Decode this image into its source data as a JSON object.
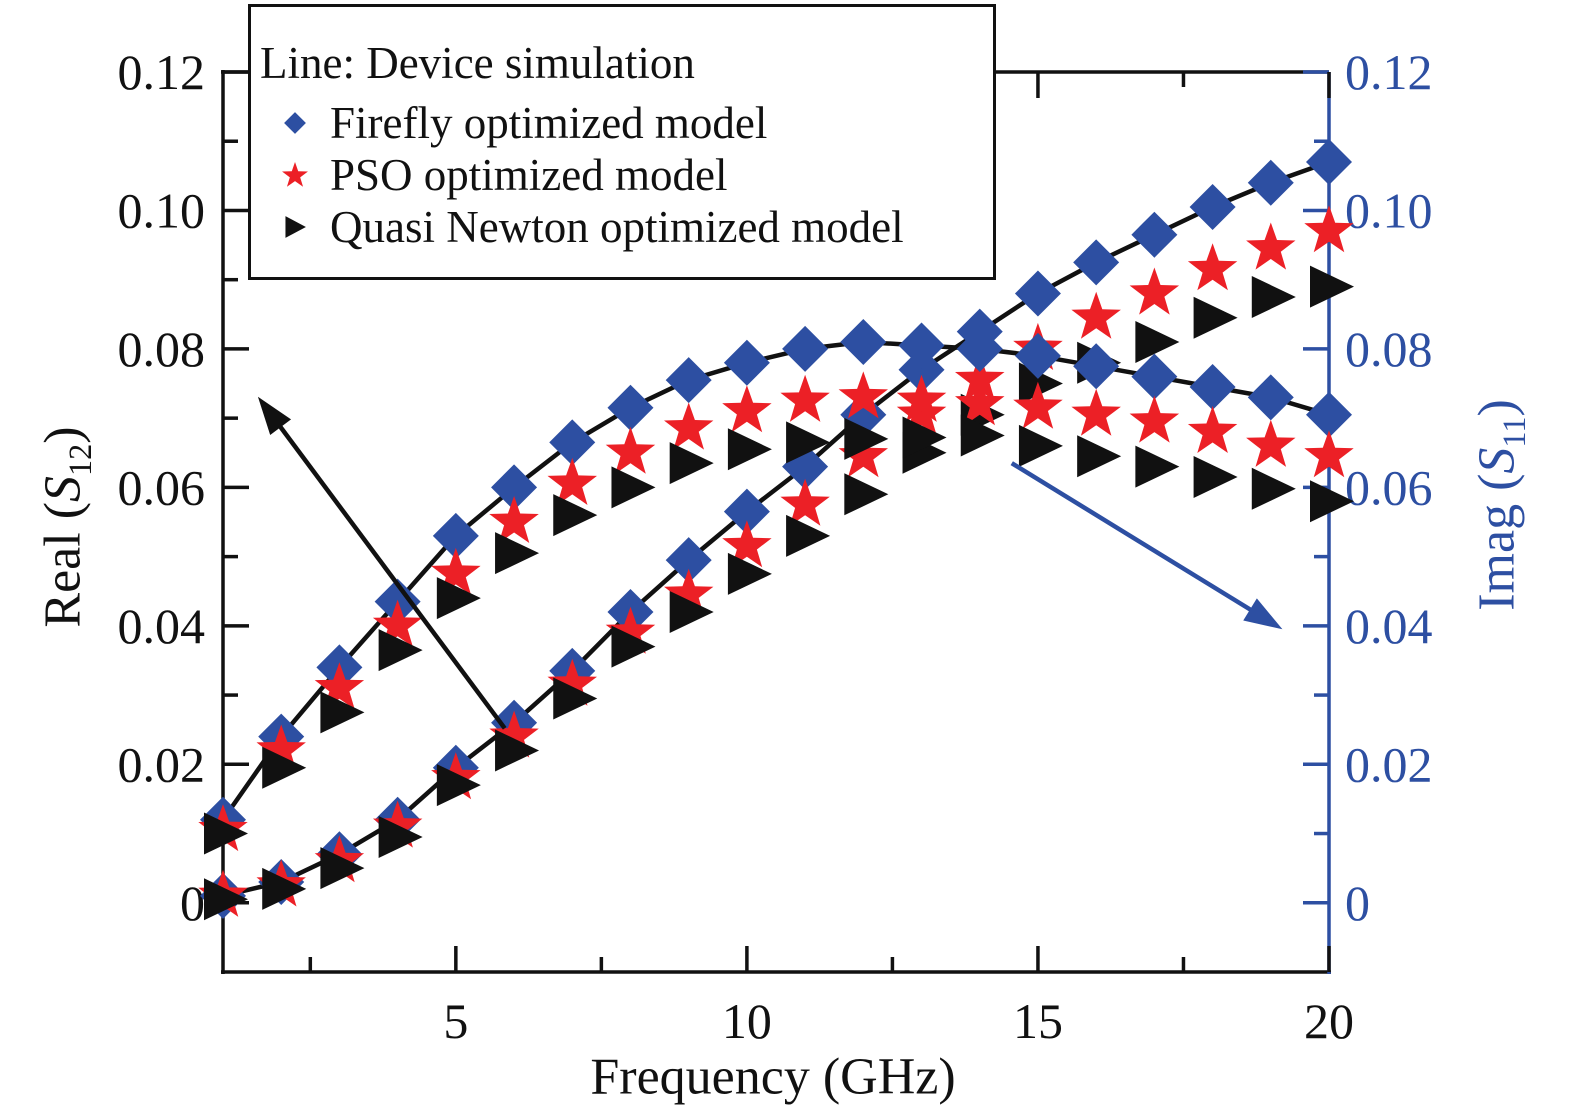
{
  "legend": {
    "line_label": "Line: Device simulation",
    "items": [
      {
        "label": "Firefly optimized model",
        "marker": "diamond",
        "color": "#2d4fa2"
      },
      {
        "label": "PSO optimized model",
        "marker": "star",
        "color": "#ec2026"
      },
      {
        "label": "Quasi Newton optimized model",
        "marker": "triangle-right",
        "color": "#111111"
      }
    ]
  },
  "axes": {
    "x_title": "Frequency (GHz)",
    "left_title": {
      "pre": "Real (",
      "var": "S",
      "sub": "12",
      "post": ")"
    },
    "right_title": {
      "pre": "Imag (",
      "var": "S",
      "sub": "11",
      "post": ")"
    }
  },
  "colors": {
    "marker_blue": "#2d4fa2",
    "marker_red": "#ec2026",
    "marker_black": "#111111",
    "line_black": "#111111",
    "right_axis_blue": "#2d4fa2"
  },
  "chart_data": {
    "type": "line",
    "x": [
      1,
      2,
      3,
      4,
      5,
      6,
      7,
      8,
      9,
      10,
      11,
      12,
      13,
      14,
      15,
      16,
      17,
      18,
      19,
      20
    ],
    "x_range": [
      1,
      20
    ],
    "x_major_ticks": [
      5,
      10,
      15,
      20
    ],
    "x_major_tick_labels": [
      "5",
      "10",
      "15",
      "20"
    ],
    "x_minor_ticks": [
      2.5,
      7.5,
      12.5,
      17.5
    ],
    "y_range": [
      -0.01,
      0.12
    ],
    "y_major_ticks": [
      0,
      0.02,
      0.04,
      0.06,
      0.08,
      0.1,
      0.12
    ],
    "y_tick_labels": [
      "0",
      "0.02",
      "0.04",
      "0.06",
      "0.08",
      "0.10",
      "0.12"
    ],
    "y_minor_step": 0.01,
    "xlabel": "Frequency (GHz)",
    "ylabel_left": "Real (S12)",
    "ylabel_right": "Imag (S11)",
    "legend_position": "top-left",
    "grid": false,
    "groups": [
      {
        "name": "Real(S12)",
        "axis": "left",
        "device_line": [
          0.001,
          0.003,
          0.007,
          0.012,
          0.0195,
          0.026,
          0.0335,
          0.042,
          0.0495,
          0.0565,
          0.063,
          0.0705,
          0.077,
          0.0825,
          0.088,
          0.0925,
          0.0965,
          0.1005,
          0.104,
          0.107
        ],
        "series": [
          {
            "name": "Firefly optimized model",
            "marker": "diamond",
            "values": [
              0.001,
              0.003,
              0.007,
              0.012,
              0.0195,
              0.026,
              0.0335,
              0.042,
              0.0495,
              0.0565,
              0.063,
              0.0705,
              0.077,
              0.0825,
              0.088,
              0.0925,
              0.0965,
              0.1005,
              0.104,
              0.107
            ]
          },
          {
            "name": "PSO optimized model",
            "marker": "star",
            "values": [
              0.001,
              0.0025,
              0.006,
              0.011,
              0.018,
              0.024,
              0.0315,
              0.039,
              0.0445,
              0.0515,
              0.0575,
              0.0645,
              0.0705,
              0.0755,
              0.08,
              0.0845,
              0.088,
              0.0915,
              0.0945,
              0.097
            ]
          },
          {
            "name": "Quasi Newton optimized model",
            "marker": "triangle-right",
            "values": [
              0.0005,
              0.002,
              0.005,
              0.0095,
              0.017,
              0.022,
              0.0295,
              0.037,
              0.042,
              0.0475,
              0.053,
              0.059,
              0.065,
              0.0705,
              0.075,
              0.078,
              0.081,
              0.0845,
              0.0875,
              0.089
            ]
          }
        ]
      },
      {
        "name": "Imag(S11)",
        "axis": "right",
        "device_line": [
          0.012,
          0.024,
          0.034,
          0.0435,
          0.053,
          0.06,
          0.0665,
          0.0715,
          0.0755,
          0.078,
          0.08,
          0.081,
          0.0805,
          0.08,
          0.079,
          0.0775,
          0.076,
          0.0745,
          0.073,
          0.0705
        ],
        "series": [
          {
            "name": "Firefly optimized model",
            "marker": "diamond",
            "values": [
              0.012,
              0.024,
              0.034,
              0.0435,
              0.053,
              0.06,
              0.0665,
              0.0715,
              0.0755,
              0.078,
              0.08,
              0.081,
              0.0805,
              0.08,
              0.079,
              0.0775,
              0.076,
              0.0745,
              0.073,
              0.0705
            ]
          },
          {
            "name": "PSO optimized model",
            "marker": "star",
            "values": [
              0.0105,
              0.022,
              0.031,
              0.04,
              0.0475,
              0.055,
              0.0605,
              0.065,
              0.0685,
              0.071,
              0.0725,
              0.073,
              0.0725,
              0.072,
              0.0715,
              0.0705,
              0.0695,
              0.068,
              0.066,
              0.0645
            ]
          },
          {
            "name": "Quasi Newton optimized model",
            "marker": "triangle-right",
            "values": [
              0.01,
              0.0195,
              0.0275,
              0.0365,
              0.044,
              0.0505,
              0.056,
              0.06,
              0.0635,
              0.0655,
              0.0665,
              0.067,
              0.0672,
              0.0675,
              0.066,
              0.0645,
              0.063,
              0.0615,
              0.0598,
              0.058
            ]
          }
        ]
      }
    ],
    "annotations": {
      "arrows": [
        {
          "name": "left-axis-arrow",
          "color": "#111111",
          "from_xy": [
            5.84,
            0.0252
          ],
          "to_xy": [
            1.6,
            0.0731
          ]
        },
        {
          "name": "right-axis-arrow",
          "color": "#2d4fa2",
          "from_xy": [
            14.55,
            0.0635
          ],
          "to_xy": [
            19.2,
            0.0395
          ]
        }
      ]
    }
  }
}
